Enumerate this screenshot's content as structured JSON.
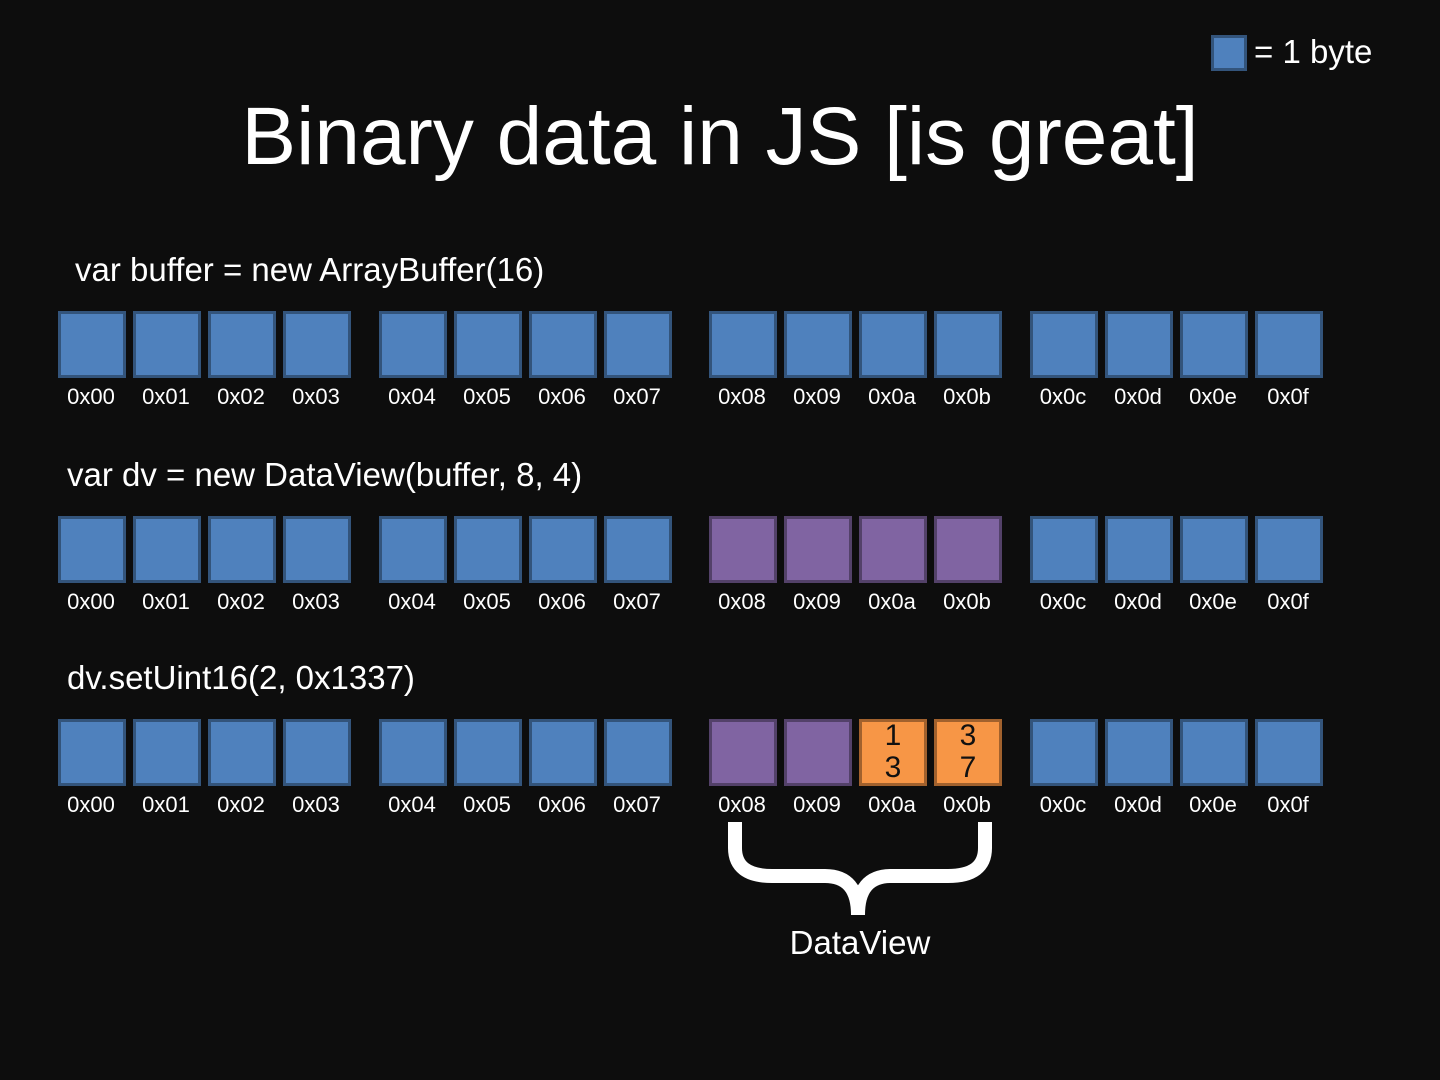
{
  "legend": {
    "color": "#4f81bd",
    "label": "= 1 byte"
  },
  "title": "Binary data in JS [is great]",
  "rows": [
    {
      "code": "var buffer = new ArrayBuffer(16)",
      "cells": [
        {
          "address": "0x00",
          "color": "#4f81bd"
        },
        {
          "address": "0x01",
          "color": "#4f81bd"
        },
        {
          "address": "0x02",
          "color": "#4f81bd"
        },
        {
          "address": "0x03",
          "color": "#4f81bd"
        },
        {
          "address": "0x04",
          "color": "#4f81bd"
        },
        {
          "address": "0x05",
          "color": "#4f81bd"
        },
        {
          "address": "0x06",
          "color": "#4f81bd"
        },
        {
          "address": "0x07",
          "color": "#4f81bd"
        },
        {
          "address": "0x08",
          "color": "#4f81bd"
        },
        {
          "address": "0x09",
          "color": "#4f81bd"
        },
        {
          "address": "0x0a",
          "color": "#4f81bd"
        },
        {
          "address": "0x0b",
          "color": "#4f81bd"
        },
        {
          "address": "0x0c",
          "color": "#4f81bd"
        },
        {
          "address": "0x0d",
          "color": "#4f81bd"
        },
        {
          "address": "0x0e",
          "color": "#4f81bd"
        },
        {
          "address": "0x0f",
          "color": "#4f81bd"
        }
      ]
    },
    {
      "code": "var dv = new DataView(buffer, 8, 4)",
      "cells": [
        {
          "address": "0x00",
          "color": "#4f81bd"
        },
        {
          "address": "0x01",
          "color": "#4f81bd"
        },
        {
          "address": "0x02",
          "color": "#4f81bd"
        },
        {
          "address": "0x03",
          "color": "#4f81bd"
        },
        {
          "address": "0x04",
          "color": "#4f81bd"
        },
        {
          "address": "0x05",
          "color": "#4f81bd"
        },
        {
          "address": "0x06",
          "color": "#4f81bd"
        },
        {
          "address": "0x07",
          "color": "#4f81bd"
        },
        {
          "address": "0x08",
          "color": "#8064a2"
        },
        {
          "address": "0x09",
          "color": "#8064a2"
        },
        {
          "address": "0x0a",
          "color": "#8064a2"
        },
        {
          "address": "0x0b",
          "color": "#8064a2"
        },
        {
          "address": "0x0c",
          "color": "#4f81bd"
        },
        {
          "address": "0x0d",
          "color": "#4f81bd"
        },
        {
          "address": "0x0e",
          "color": "#4f81bd"
        },
        {
          "address": "0x0f",
          "color": "#4f81bd"
        }
      ]
    },
    {
      "code": "dv.setUint16(2, 0x1337)",
      "cells": [
        {
          "address": "0x00",
          "color": "#4f81bd"
        },
        {
          "address": "0x01",
          "color": "#4f81bd"
        },
        {
          "address": "0x02",
          "color": "#4f81bd"
        },
        {
          "address": "0x03",
          "color": "#4f81bd"
        },
        {
          "address": "0x04",
          "color": "#4f81bd"
        },
        {
          "address": "0x05",
          "color": "#4f81bd"
        },
        {
          "address": "0x06",
          "color": "#4f81bd"
        },
        {
          "address": "0x07",
          "color": "#4f81bd"
        },
        {
          "address": "0x08",
          "color": "#8064a2"
        },
        {
          "address": "0x09",
          "color": "#8064a2"
        },
        {
          "address": "0x0a",
          "color": "#f79646",
          "text": "13"
        },
        {
          "address": "0x0b",
          "color": "#f79646",
          "text": "37"
        },
        {
          "address": "0x0c",
          "color": "#4f81bd"
        },
        {
          "address": "0x0d",
          "color": "#4f81bd"
        },
        {
          "address": "0x0e",
          "color": "#4f81bd"
        },
        {
          "address": "0x0f",
          "color": "#4f81bd"
        }
      ]
    }
  ],
  "brace_label": "DataView"
}
